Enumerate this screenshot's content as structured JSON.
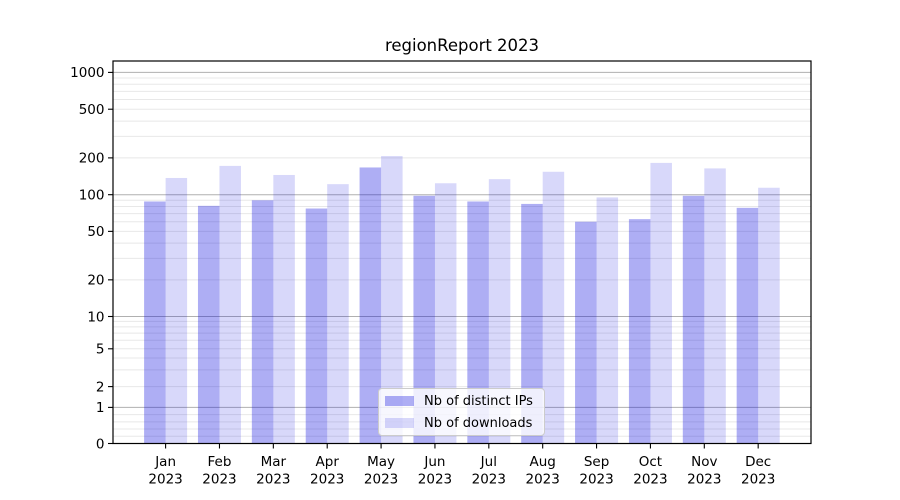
{
  "title": "regionReport 2023",
  "colors": {
    "ips_bar": "rgba(10,10,222,0.33)",
    "downloads_bar": "rgba(10,10,222,0.16)",
    "grid_major": "#b0b0b0",
    "grid_minor": "#e8e8e8",
    "axis": "#000000",
    "text": "#000000"
  },
  "legend": {
    "items": [
      {
        "label": "Nb of distinct IPs"
      },
      {
        "label": "Nb of downloads"
      }
    ]
  },
  "chart_data": {
    "type": "bar",
    "title": "regionReport 2023",
    "categories": [
      "Jan 2023",
      "Feb 2023",
      "Mar 2023",
      "Apr 2023",
      "May 2023",
      "Jun 2023",
      "Jul 2023",
      "Aug 2023",
      "Sep 2023",
      "Oct 2023",
      "Nov 2023",
      "Dec 2023"
    ],
    "series": [
      {
        "name": "Nb of distinct IPs",
        "values": [
          88,
          81,
          90,
          77,
          167,
          98,
          88,
          84,
          60,
          63,
          98,
          78
        ]
      },
      {
        "name": "Nb of downloads",
        "values": [
          137,
          172,
          145,
          122,
          207,
          124,
          134,
          154,
          95,
          182,
          164,
          114
        ]
      }
    ],
    "xlabel": "",
    "ylabel": "",
    "yscale": "symlog",
    "ylim": [
      0,
      1240
    ],
    "y_ticks": [
      1000,
      500,
      200,
      100,
      50,
      20,
      10,
      5,
      2,
      1,
      0
    ],
    "grid": "on",
    "legend_position": "lower center"
  }
}
